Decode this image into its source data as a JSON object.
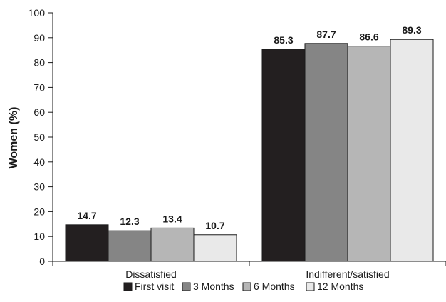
{
  "chart_data": {
    "type": "bar",
    "title": "",
    "xlabel": "",
    "ylabel": "Women (%)",
    "ylim": [
      0,
      100
    ],
    "yticks": [
      0,
      10,
      20,
      30,
      40,
      50,
      60,
      70,
      80,
      90,
      100
    ],
    "categories": [
      "Dissatisfied",
      "Indifferent/satisfied"
    ],
    "series": [
      {
        "name": "First visit",
        "color": "#231f20",
        "values": [
          14.7,
          85.3
        ]
      },
      {
        "name": "3 Months",
        "color": "#858585",
        "values": [
          12.3,
          87.7
        ]
      },
      {
        "name": "6 Months",
        "color": "#b6b6b6",
        "values": [
          13.4,
          86.6
        ]
      },
      {
        "name": "12 Months",
        "color": "#e9e9e9",
        "values": [
          10.7,
          89.3
        ]
      }
    ],
    "data_labels": [
      [
        "14.7",
        "12.3",
        "13.4",
        "10.7"
      ],
      [
        "85.3",
        "87.7",
        "86.6",
        "89.3"
      ]
    ],
    "legend_position": "bottom",
    "grid": false
  }
}
